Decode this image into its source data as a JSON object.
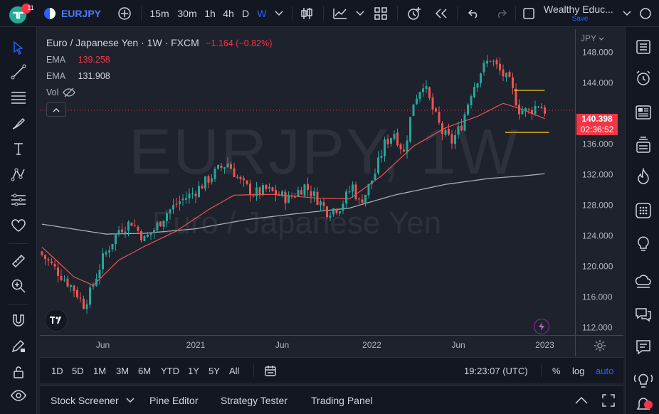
{
  "app": {
    "notification_count": "11",
    "logo_text": "TV"
  },
  "toolbar": {
    "symbol": "EURJPY",
    "intervals": [
      "15m",
      "30m",
      "1h",
      "4h",
      "D",
      "W"
    ],
    "selected_interval": "W",
    "layout_name": "Wealthy Educ...",
    "layout_status": "Save"
  },
  "legend": {
    "title": "Euro / Japanese Yen · 1W · FXCM",
    "change": "−1.164 (−0.82%)",
    "ema1_label": "EMA",
    "ema1_value": "139.258",
    "ema2_label": "EMA",
    "ema2_value": "131.908",
    "vol_label": "Vol"
  },
  "watermark": {
    "symbol": "EURJPY, 1W",
    "description": "Euro / Japanese Yen"
  },
  "price_axis": {
    "currency": "JPY",
    "current_price": "140.398",
    "countdown": "02:36:52",
    "colors": {
      "up": "#26a69a",
      "down": "#ef5350",
      "ema_fast": "#ef5350",
      "ema_slow": "#b2b5be",
      "price_tag": "#f23645"
    }
  },
  "range_bar": {
    "ranges": [
      "1D",
      "5D",
      "1M",
      "3M",
      "6M",
      "YTD",
      "1Y",
      "5Y",
      "All"
    ],
    "clock": "19:23:07 (UTC)",
    "percent": "%",
    "log": "log",
    "auto": "auto"
  },
  "panels": {
    "tabs": [
      "Stock Screener",
      "Pine Editor",
      "Strategy Tester",
      "Trading Panel"
    ]
  },
  "chart_data": {
    "type": "candlestick",
    "x_ticks": [
      "Jun",
      "2021",
      "Jun",
      "2022",
      "Jun",
      "2023"
    ],
    "y_ticks": [
      112,
      116,
      120,
      124,
      128,
      132,
      136,
      140,
      144,
      148
    ],
    "y_tick_labels": [
      "112.000",
      "116.000",
      "120.000",
      "124.000",
      "128.000",
      "132.000",
      "136.000",
      "140.000",
      "144.000",
      "148.000"
    ],
    "ylim": [
      111,
      151
    ],
    "close_anchors": [
      [
        0,
        121.5
      ],
      [
        6,
        118.8
      ],
      [
        10,
        117
      ],
      [
        13,
        115
      ],
      [
        15,
        116.5
      ],
      [
        19,
        121
      ],
      [
        24,
        124.8
      ],
      [
        28,
        125.8
      ],
      [
        32,
        123.5
      ],
      [
        35,
        124.8
      ],
      [
        39,
        127
      ],
      [
        43,
        128.5
      ],
      [
        47,
        129.5
      ],
      [
        51,
        131
      ],
      [
        55,
        132.6
      ],
      [
        58,
        133.5
      ],
      [
        62,
        131
      ],
      [
        66,
        129.5
      ],
      [
        70,
        130
      ],
      [
        73,
        129.5
      ],
      [
        77,
        128.8
      ],
      [
        82,
        130.5
      ],
      [
        86,
        128.8
      ],
      [
        89,
        127.2
      ],
      [
        93,
        127.8
      ],
      [
        97,
        130.5
      ],
      [
        99,
        128.3
      ],
      [
        101,
        129.5
      ],
      [
        104,
        132.2
      ],
      [
        107,
        136
      ],
      [
        110,
        137.5
      ],
      [
        113,
        134.8
      ],
      [
        116,
        141.5
      ],
      [
        119,
        144
      ],
      [
        122,
        140.5
      ],
      [
        125,
        137.5
      ],
      [
        128,
        136.3
      ],
      [
        131,
        138.5
      ],
      [
        134,
        142.8
      ],
      [
        137,
        145.5
      ],
      [
        140,
        147.2
      ],
      [
        143,
        145.5
      ],
      [
        146,
        144
      ],
      [
        149,
        140.5
      ],
      [
        152,
        140.2
      ],
      [
        155,
        141.2
      ],
      [
        157,
        140.4
      ]
    ],
    "ema_fast": [
      [
        0,
        122.5
      ],
      [
        10,
        118.6
      ],
      [
        16,
        117.5
      ],
      [
        24,
        120.8
      ],
      [
        32,
        122.6
      ],
      [
        42,
        124.6
      ],
      [
        52,
        127.4
      ],
      [
        60,
        129.3
      ],
      [
        72,
        129.4
      ],
      [
        86,
        128.9
      ],
      [
        96,
        128.8
      ],
      [
        106,
        131.8
      ],
      [
        116,
        135.7
      ],
      [
        126,
        138.1
      ],
      [
        136,
        139.6
      ],
      [
        144,
        141.3
      ],
      [
        150,
        140.5
      ],
      [
        157,
        139.3
      ]
    ],
    "ema_slow": [
      [
        0,
        125.5
      ],
      [
        20,
        124.2
      ],
      [
        32,
        124.3
      ],
      [
        48,
        124.9
      ],
      [
        64,
        126.1
      ],
      [
        80,
        126.9
      ],
      [
        96,
        127.6
      ],
      [
        110,
        129.3
      ],
      [
        126,
        130.7
      ],
      [
        140,
        131.5
      ],
      [
        150,
        131.8
      ],
      [
        157,
        132.1
      ]
    ],
    "range_box": {
      "top": 143,
      "bottom": 137.5,
      "start_bar": 146,
      "end_bar": 157
    },
    "current_price_line": 140.4
  }
}
